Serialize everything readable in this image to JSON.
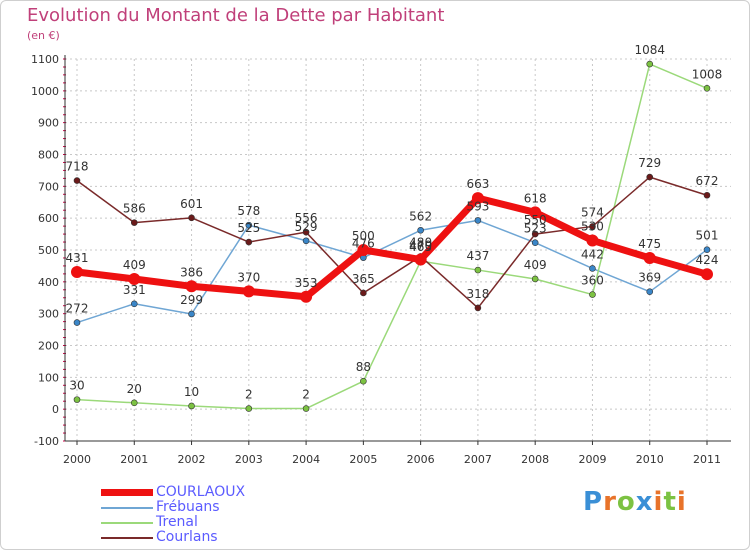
{
  "chart_title": "Evolution du Montant de la Dette par Habitant",
  "unit_label": "(en €)",
  "brand": {
    "text": "Proxiti",
    "letters": [
      {
        "char": "P",
        "color": "#3a8fd6"
      },
      {
        "char": "r",
        "color": "#e8732a"
      },
      {
        "char": "o",
        "color": "#7cc242"
      },
      {
        "char": "x",
        "color": "#3a8fd6"
      },
      {
        "char": "i",
        "color": "#e8732a"
      },
      {
        "char": "t",
        "color": "#7cc242"
      },
      {
        "char": "i",
        "color": "#e8732a"
      }
    ]
  },
  "chart_data": {
    "type": "line",
    "title": "Evolution du Montant de la Dette par Habitant",
    "subtitle": "(en €)",
    "x": [
      "2000",
      "2001",
      "2002",
      "2003",
      "2004",
      "2005",
      "2006",
      "2007",
      "2008",
      "2009",
      "2010",
      "2011"
    ],
    "ylim": [
      -100,
      1100
    ],
    "yticks": [
      -100,
      0,
      100,
      200,
      300,
      400,
      500,
      600,
      700,
      800,
      900,
      1000,
      1100
    ],
    "grid": true,
    "legend_position": "bottom-left",
    "series": [
      {
        "name": "COURLAOUX",
        "color": "#ee1111",
        "marker": "#ee1111",
        "width": 7,
        "emphasis": true,
        "values": [
          431,
          409,
          386,
          370,
          353,
          500,
          470,
          663,
          618,
          530,
          475,
          424
        ],
        "labels": [
          "431",
          "409",
          "386",
          "370",
          "353",
          "500",
          "470",
          "663",
          "618",
          "530",
          "475",
          "424"
        ]
      },
      {
        "name": "Frébuans",
        "color": "#6fa6d4",
        "marker": "#3a86c8",
        "width": 1.5,
        "values": [
          272,
          331,
          299,
          578,
          529,
          476,
          562,
          593,
          523,
          442,
          369,
          501
        ],
        "labels": [
          "272",
          "331",
          "299",
          "578",
          "529",
          "476",
          "562",
          "593",
          "523",
          "442",
          "369",
          "501"
        ]
      },
      {
        "name": "Trenal",
        "color": "#9bd97a",
        "marker": "#7cc242",
        "width": 1.5,
        "values": [
          30,
          20,
          10,
          2,
          2,
          88,
          465,
          437,
          409,
          360,
          1084,
          1008
        ],
        "labels": [
          "30",
          "20",
          "10",
          "2",
          "2",
          "88",
          "465",
          "437",
          "409",
          "360",
          "1084",
          "1008"
        ]
      },
      {
        "name": "Courlans",
        "color": "#7a2a2a",
        "marker": "#6b1a1a",
        "width": 1.5,
        "values": [
          718,
          586,
          601,
          525,
          556,
          365,
          480,
          318,
          550,
          574,
          729,
          672
        ],
        "labels": [
          "718",
          "586",
          "601",
          "525",
          "556",
          "365",
          "480",
          "318",
          "550",
          "574",
          "729",
          "672"
        ]
      }
    ]
  }
}
